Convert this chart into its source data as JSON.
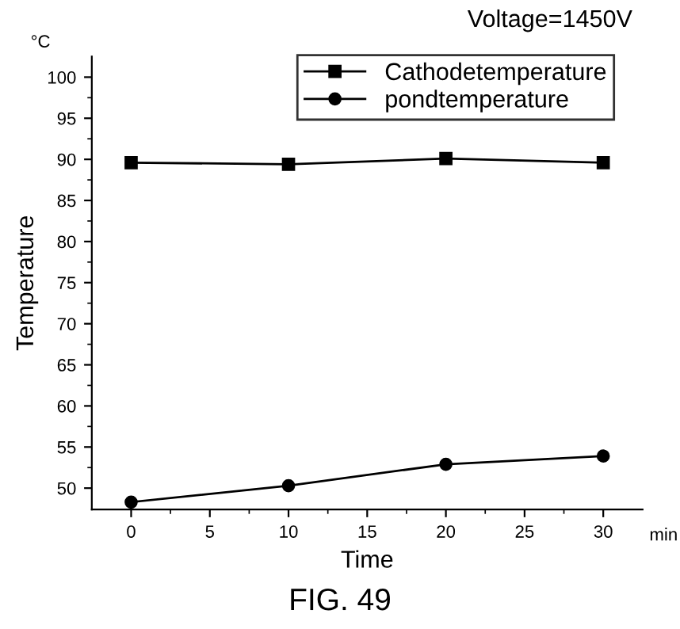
{
  "chart_data": {
    "type": "line",
    "xlabel": "Time",
    "ylabel": "Temperature",
    "annotations": [
      "Voltage=1450V",
      "°C",
      "min",
      "FIG. 49"
    ],
    "x": [
      0,
      10,
      20,
      30
    ],
    "series": [
      {
        "name": "Cathodetemperature",
        "color": "#000000",
        "marker": "square",
        "values": [
          89.6,
          89.4,
          90.1,
          89.6
        ]
      },
      {
        "name": "pondtemperature",
        "color": "#000000",
        "marker": "circle",
        "values": [
          48.3,
          50.3,
          52.9,
          53.9
        ]
      }
    ],
    "xlim": [
      -2.5,
      32.5
    ],
    "xticks": [
      0,
      5,
      10,
      15,
      20,
      25,
      30
    ],
    "ylim": [
      47.4,
      102.5
    ],
    "yticks": [
      50,
      55,
      60,
      65,
      70,
      75,
      80,
      85,
      90,
      95,
      100
    ],
    "grid": false,
    "legend": "top right",
    "line_style": "solid"
  }
}
